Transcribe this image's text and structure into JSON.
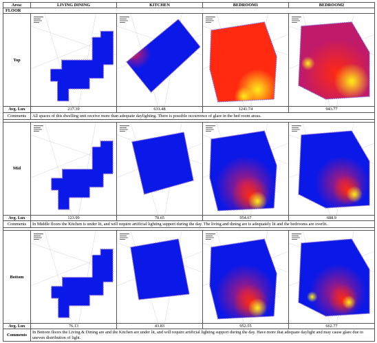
{
  "header": {
    "area_label": "Area:",
    "floor_label": "FLOOR",
    "columns": [
      "LIVING DINING",
      "KITCHEN",
      "BEDROOM1",
      "BEDROOM2"
    ]
  },
  "avg_lux_label": "Avg. Lux",
  "comments_label": "Comments",
  "floors": [
    {
      "name": "Top",
      "lux": [
        "217.39",
        "631.48",
        "1241.74",
        "943.77"
      ],
      "comment": "All spaces of this dwelling unit receive more than adequate daylighting.  There is possible occurrence of glare in the bed room areas."
    },
    {
      "name": "Mid",
      "lux": [
        "123.99",
        "70.65",
        "954.67",
        "688.9"
      ],
      "comment": "In Middle floors the Kitchen is under lit, and will require artificial lighting support during the day. The living and dining are is adequately lit and the bedrooms are overlit."
    },
    {
      "name": "Bottom",
      "lux": [
        "76.13",
        "43.83",
        "952.55",
        "662.77"
      ],
      "comment": "In Bottom floors the Living & Dining are and the Kitchen are under lit, and will require artificial lighting support during the day. Have more that adequate daylight and may cause glare due to uneven distribution of light."
    }
  ],
  "colors": {
    "low_lux": "#0a18e8",
    "mid_lux": "#c01a6a",
    "high_lux": "#ff2a10",
    "peak_lux": "#ffee1a"
  }
}
